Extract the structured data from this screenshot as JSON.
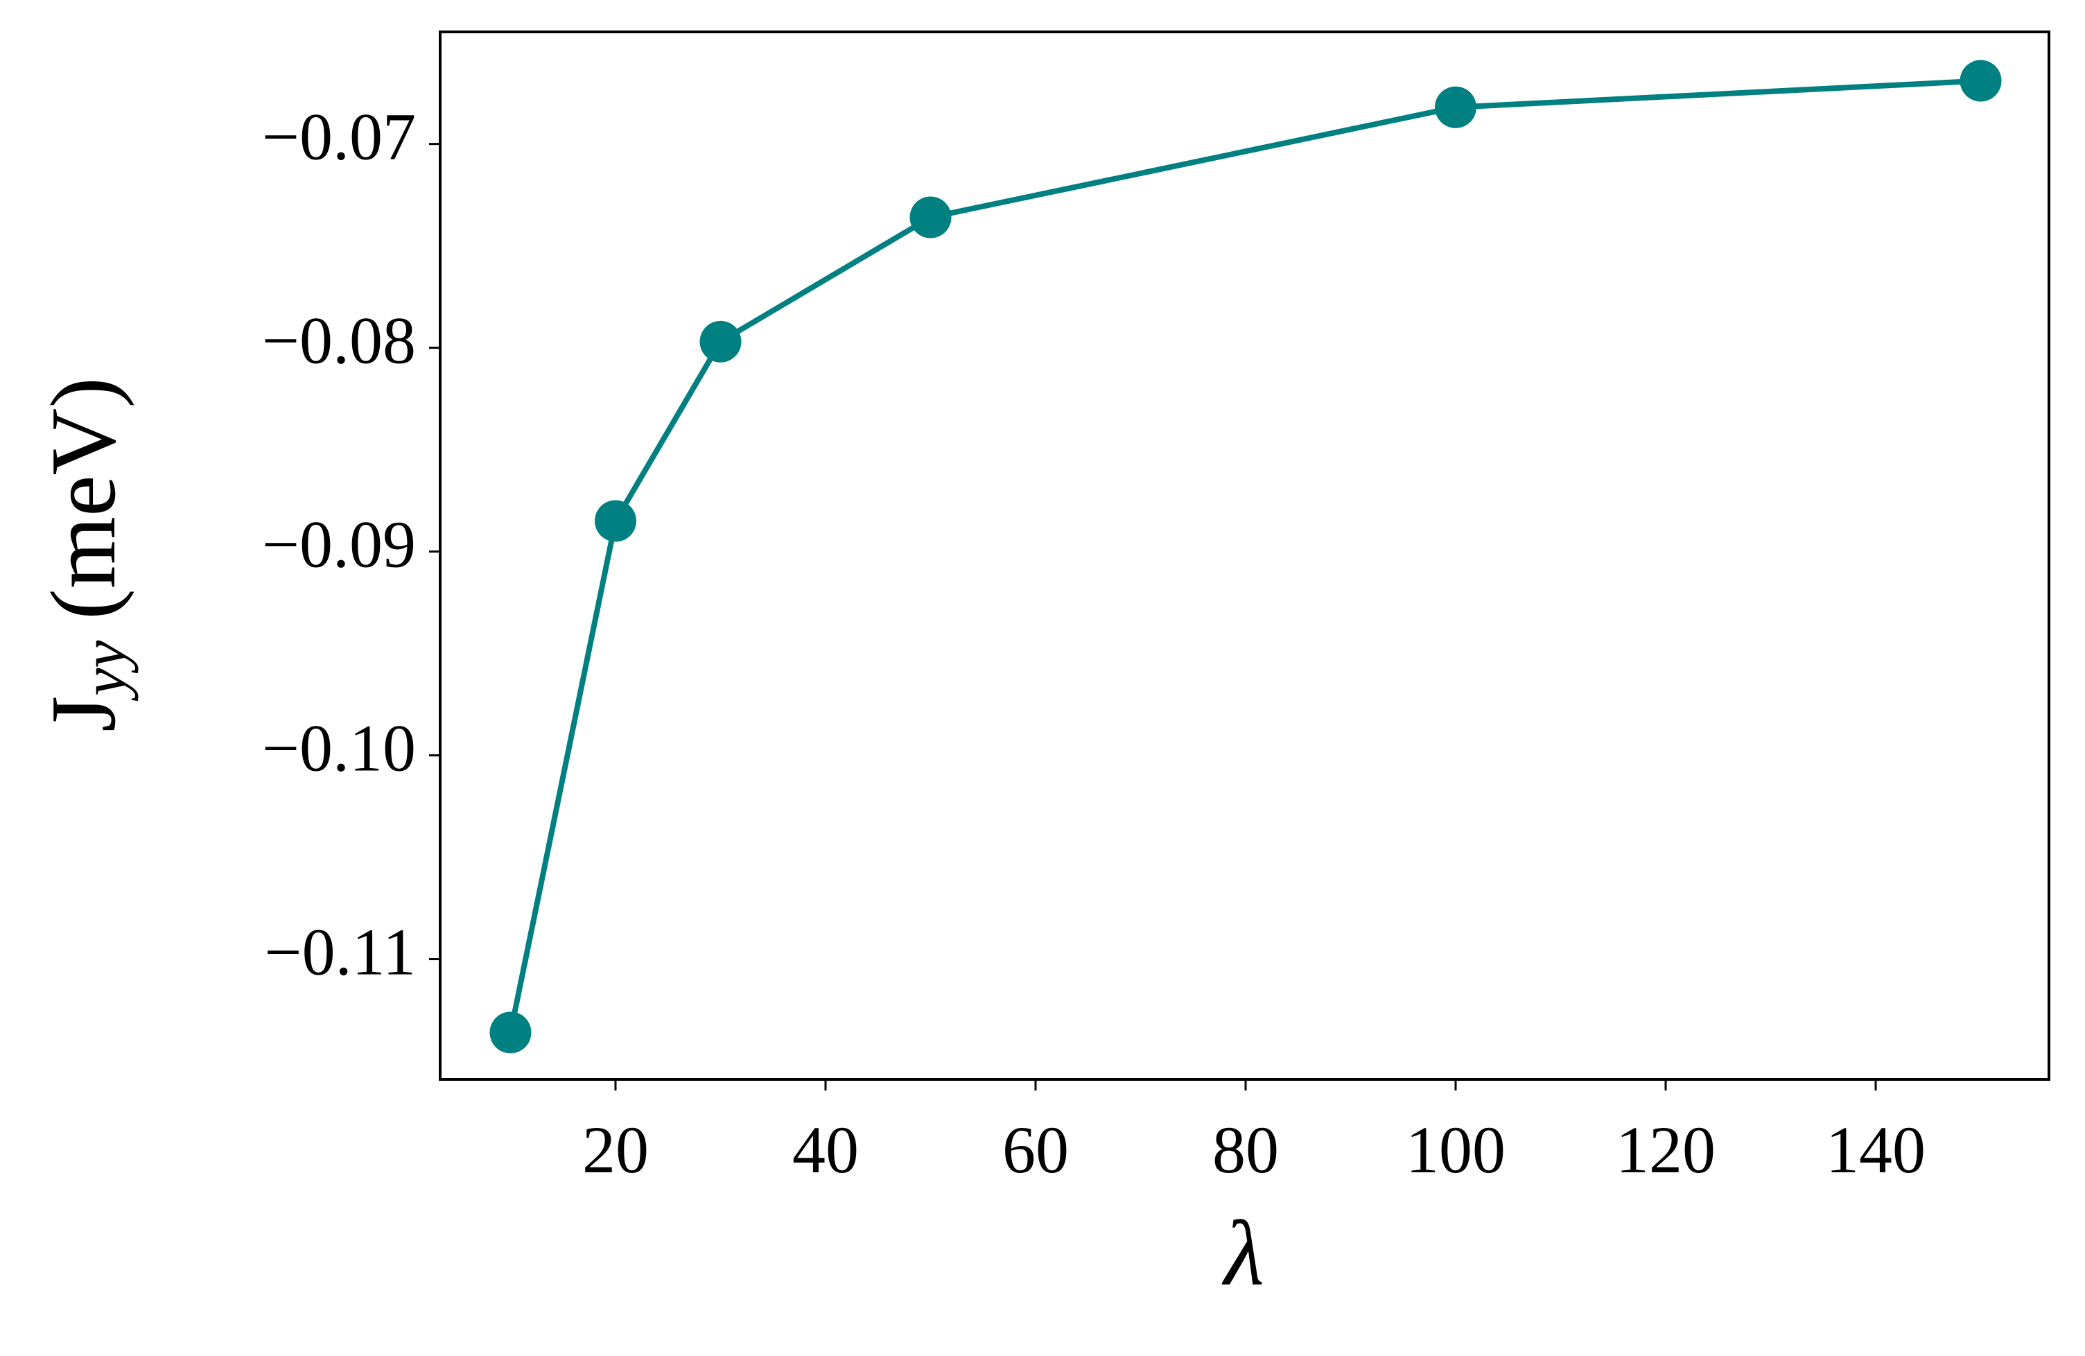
{
  "chart_data": {
    "type": "line",
    "xlabel": "λ",
    "ylabel": {
      "main": "J",
      "sub": "yy",
      "unit": "(meV)"
    },
    "x": [
      10,
      20,
      30,
      50,
      100,
      150
    ],
    "series": [
      {
        "color": "#008080",
        "values": [
          -0.1136,
          -0.0885,
          -0.0797,
          -0.0736,
          -0.0682,
          -0.0669
        ]
      }
    ],
    "xlim": [
      3.3,
      156.5
    ],
    "ylim": [
      -0.1159,
      -0.0645
    ],
    "xticks": [
      20,
      40,
      60,
      80,
      100,
      120,
      140
    ],
    "yticks": [
      {
        "value": -0.11,
        "label": "−0.11"
      },
      {
        "value": -0.1,
        "label": "−0.10"
      },
      {
        "value": -0.09,
        "label": "−0.09"
      },
      {
        "value": -0.08,
        "label": "−0.08"
      },
      {
        "value": -0.07,
        "label": "−0.07"
      }
    ],
    "grid": false,
    "marker": "circle"
  }
}
